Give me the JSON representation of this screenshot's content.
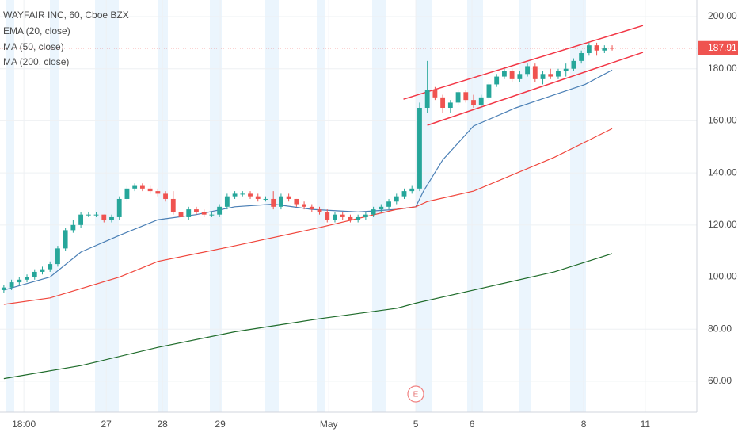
{
  "chart_data": {
    "type": "candlestick",
    "title": "WAYFAIR INC, 60, Cboe BZX",
    "up_color": "#26a69a",
    "down_color": "#ef5350",
    "open": [
      95,
      96,
      98,
      99,
      100,
      102,
      103,
      105,
      111,
      118,
      120,
      124,
      124,
      124,
      122,
      123,
      130,
      134,
      135,
      134,
      133,
      132,
      130,
      125,
      123,
      126,
      125,
      124,
      124,
      127,
      131,
      132,
      132,
      131,
      130,
      130,
      127,
      131,
      130,
      128,
      127,
      126,
      125,
      122,
      124,
      123,
      122,
      123,
      124,
      126,
      127,
      129,
      131,
      133,
      134,
      165,
      172,
      169,
      165,
      167,
      171,
      168,
      166,
      169,
      174,
      177,
      179,
      176,
      178,
      181,
      176,
      178,
      177,
      179,
      180,
      183,
      186,
      189,
      187,
      188
    ],
    "high": [
      97,
      99,
      100,
      101,
      103,
      104,
      106,
      112,
      119,
      122,
      125,
      125,
      125,
      124,
      124,
      131,
      135,
      136,
      136,
      135,
      134,
      133,
      133,
      126,
      127,
      127,
      126,
      125,
      128,
      132,
      133,
      133,
      133,
      132,
      131,
      133,
      132,
      132,
      130,
      129,
      128,
      127,
      126,
      125,
      125,
      124,
      124,
      125,
      127,
      128,
      130,
      132,
      134,
      135,
      167,
      183,
      173,
      170,
      168,
      172,
      172,
      170,
      170,
      175,
      178,
      180,
      180,
      179,
      182,
      182,
      179,
      180,
      180,
      182,
      184,
      187,
      190,
      190,
      189,
      189
    ],
    "low": [
      94,
      95,
      97,
      98,
      99,
      101,
      102,
      104,
      110,
      117,
      119,
      123,
      123,
      121,
      121,
      122,
      129,
      133,
      133,
      132,
      131,
      129,
      124,
      122,
      122,
      124,
      123,
      123,
      123,
      126,
      130,
      131,
      130,
      129,
      129,
      126,
      126,
      129,
      127,
      126,
      125,
      124,
      121,
      121,
      122,
      121,
      121,
      122,
      123,
      125,
      126,
      128,
      130,
      132,
      133,
      163,
      168,
      163,
      163,
      166,
      167,
      165,
      165,
      168,
      173,
      176,
      175,
      175,
      177,
      175,
      174,
      176,
      176,
      177,
      179,
      182,
      185,
      185,
      186,
      187
    ],
    "close": [
      96,
      98,
      99,
      100,
      102,
      103,
      105,
      111,
      118,
      120,
      124,
      124,
      124,
      122,
      123,
      130,
      134,
      135,
      134,
      133,
      132,
      130,
      125,
      123,
      126,
      125,
      124,
      124,
      127,
      131,
      132,
      132,
      131,
      130,
      130,
      127,
      131,
      130,
      128,
      127,
      126,
      125,
      122,
      124,
      123,
      122,
      123,
      124,
      126,
      127,
      129,
      131,
      133,
      134,
      165,
      172,
      169,
      165,
      167,
      171,
      168,
      166,
      169,
      174,
      177,
      179,
      176,
      178,
      181,
      176,
      178,
      177,
      179,
      180,
      183,
      186,
      189,
      187,
      188,
      187.91
    ],
    "series": [
      {
        "name": "EMA (20, close)",
        "color": "#4a7fb5",
        "x": [
          0,
          6,
          10,
          15,
          20,
          25,
          30,
          35,
          40,
          46,
          51,
          53.5,
          54.5,
          57,
          61,
          66.5,
          71.5,
          75.5,
          79
        ],
        "values": [
          95,
          100,
          109.6,
          116,
          122,
          124,
          127,
          128,
          126,
          125,
          126,
          127,
          133,
          145,
          158,
          165,
          170,
          174,
          179.5
        ]
      },
      {
        "name": "MA (50, close)",
        "color": "#f0473d",
        "x": [
          0,
          6,
          15,
          20,
          30,
          41,
          51,
          53.5,
          55,
          61,
          71.5,
          79
        ],
        "values": [
          89.5,
          92,
          100,
          106,
          112,
          119,
          126,
          127,
          129,
          133,
          146,
          157
        ]
      },
      {
        "name": "MA (200, close)",
        "color": "#1e6b2a",
        "x": [
          0,
          10,
          20,
          30,
          41,
          51,
          53.5,
          61,
          71.5,
          79
        ],
        "values": [
          61,
          66,
          73,
          79,
          84,
          88,
          90,
          95,
          102,
          109
        ]
      }
    ],
    "channel_lines": [
      {
        "color": "#f23645",
        "x": [
          51.9,
          83.0
        ],
        "values": [
          168.3,
          196.6
        ]
      },
      {
        "color": "#f23645",
        "x": [
          55.0,
          83.0
        ],
        "values": [
          158.3,
          186.3
        ]
      }
    ],
    "earnings_marker": "E",
    "xlim": [
      -0.5,
      90
    ],
    "xticks": [
      {
        "value": 2.6,
        "label": "18:00"
      },
      {
        "value": 13.3,
        "label": "27"
      },
      {
        "value": 20.6,
        "label": "28"
      },
      {
        "value": 28.1,
        "label": "29"
      },
      {
        "value": 42.2,
        "label": "May"
      },
      {
        "value": 53.5,
        "label": "5"
      },
      {
        "value": 60.8,
        "label": "6"
      },
      {
        "value": 75.3,
        "label": "8"
      },
      {
        "value": 83.3,
        "label": "11"
      }
    ],
    "ylim": [
      48.1,
      206.4
    ],
    "yticks": [
      {
        "value": 60,
        "label": "60.00"
      },
      {
        "value": 80,
        "label": "80.00"
      },
      {
        "value": 100,
        "label": "100.00"
      },
      {
        "value": 120,
        "label": "120.00"
      },
      {
        "value": 140,
        "label": "140.00"
      },
      {
        "value": 160,
        "label": "160.00"
      },
      {
        "value": 180,
        "label": "180.00"
      },
      {
        "value": 200,
        "label": "200.00"
      }
    ],
    "grid": true
  }
}
